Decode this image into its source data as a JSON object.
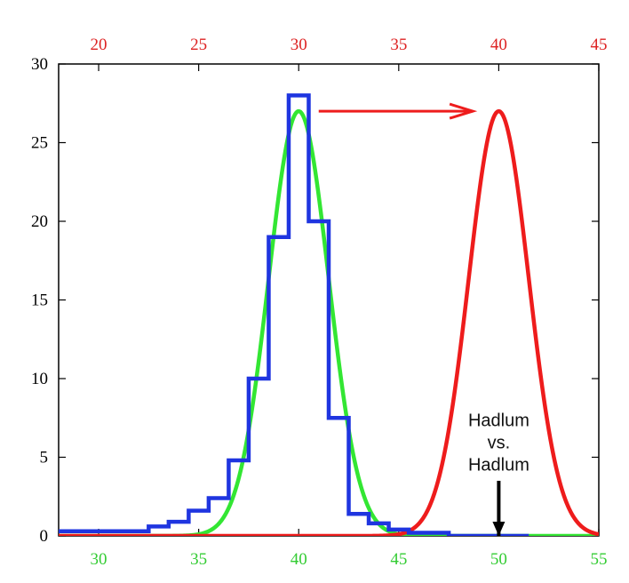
{
  "chart_data": {
    "type": "line",
    "title": "",
    "xlabel": "",
    "ylabel": "",
    "grid": false,
    "xlim": [
      28,
      55
    ],
    "ylim": [
      0,
      30
    ],
    "x_ticks_bottom": [
      30,
      35,
      40,
      45,
      50,
      55
    ],
    "x_ticks_top": [
      20,
      25,
      30,
      35,
      40,
      45
    ],
    "y_ticks": [
      0,
      5,
      10,
      15,
      20,
      25,
      30
    ],
    "colors": {
      "green": "#33e633",
      "blue": "#1f35e0",
      "red": "#ee1c1c",
      "bottom_ticks": "#33cc33",
      "top_ticks": "#dd2222"
    },
    "series": [
      {
        "kind": "histogram",
        "color": "blue",
        "bins": [
          {
            "x0": 28.0,
            "x1": 32.5,
            "y": 0.3
          },
          {
            "x0": 32.5,
            "x1": 33.5,
            "y": 0.6
          },
          {
            "x0": 33.5,
            "x1": 34.5,
            "y": 0.9
          },
          {
            "x0": 34.5,
            "x1": 35.5,
            "y": 1.6
          },
          {
            "x0": 35.5,
            "x1": 36.5,
            "y": 2.4
          },
          {
            "x0": 36.5,
            "x1": 37.5,
            "y": 4.8
          },
          {
            "x0": 37.5,
            "x1": 38.5,
            "y": 10.0
          },
          {
            "x0": 38.5,
            "x1": 39.5,
            "y": 19.0
          },
          {
            "x0": 39.5,
            "x1": 40.5,
            "y": 28.0
          },
          {
            "x0": 40.5,
            "x1": 41.5,
            "y": 20.0
          },
          {
            "x0": 41.5,
            "x1": 42.5,
            "y": 7.5
          },
          {
            "x0": 42.5,
            "x1": 43.5,
            "y": 1.4
          },
          {
            "x0": 43.5,
            "x1": 44.5,
            "y": 0.8
          },
          {
            "x0": 44.5,
            "x1": 45.5,
            "y": 0.4
          },
          {
            "x0": 45.5,
            "x1": 47.5,
            "y": 0.2
          },
          {
            "x0": 47.5,
            "x1": 51.5,
            "y": 0.0
          }
        ]
      },
      {
        "kind": "gaussian",
        "color": "green",
        "mean": 40.0,
        "sigma": 1.5,
        "peak": 27
      },
      {
        "kind": "gaussian",
        "color": "red",
        "mean": 50.0,
        "sigma": 1.5,
        "peak": 27
      }
    ],
    "annotations": [
      {
        "type": "arrow",
        "color": "red",
        "from": [
          41.0,
          27.0
        ],
        "to": [
          48.7,
          27.0
        ]
      },
      {
        "type": "arrow",
        "color": "black",
        "from": [
          50.0,
          3.5
        ],
        "to": [
          50.0,
          0.0
        ]
      },
      {
        "type": "text",
        "lines": [
          "Hadlum",
          "vs.",
          "Hadlum"
        ],
        "at": [
          50.0,
          5.0
        ]
      }
    ]
  }
}
